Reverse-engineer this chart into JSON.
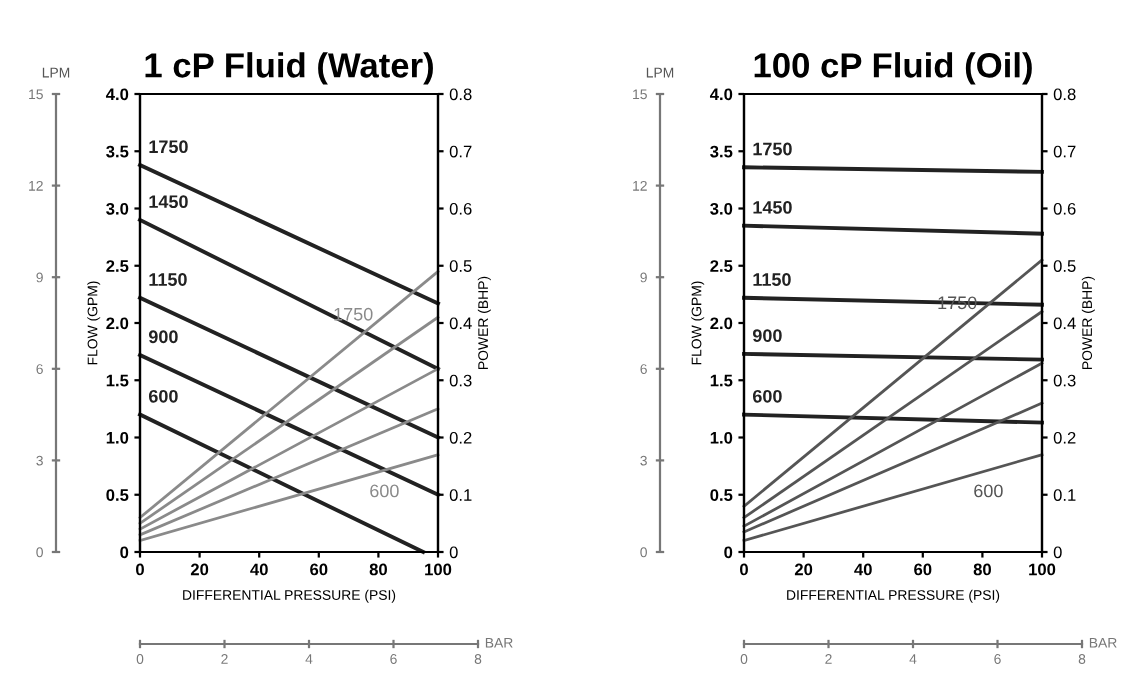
{
  "chart_data": [
    {
      "type": "line",
      "title": "1 cP Fluid (Water)",
      "xlabel": "DIFFERENTIAL PRESSURE (PSI)",
      "ylabel": "FLOW (GPM)",
      "y2label": "POWER (BHP)",
      "y3label": "LPM",
      "x2label": "BAR",
      "xlim": [
        0,
        100
      ],
      "xticks": [
        0,
        20,
        40,
        60,
        80,
        100
      ],
      "ylim": [
        0,
        4
      ],
      "yticks": [
        0,
        {
          "value": 0.5,
          "label": "0.5"
        },
        {
          "value": 1,
          "label": "1.0"
        },
        {
          "value": 1.5,
          "label": "1.5"
        },
        {
          "value": 2,
          "label": "2.0"
        },
        {
          "value": 2.5,
          "label": "2.5"
        },
        {
          "value": 3,
          "label": "3.0"
        },
        {
          "value": 3.5,
          "label": "3.5"
        },
        {
          "value": 4,
          "label": "4.0"
        }
      ],
      "y2lim": [
        0,
        0.8
      ],
      "y2ticks": [
        0,
        0.1,
        0.2,
        0.3,
        0.4,
        0.5,
        0.6,
        0.7,
        0.8
      ],
      "y3lim": [
        0,
        15
      ],
      "y3ticks": [
        0,
        3,
        6,
        9,
        12,
        15
      ],
      "x2lim": [
        0,
        8
      ],
      "x2ticks": [
        0,
        2,
        4,
        6,
        8
      ],
      "grid": false,
      "legend": false,
      "marker": "none",
      "line_style": "solid",
      "series": [
        {
          "name": "1750",
          "color": "#222222",
          "x": [
            0,
            100
          ],
          "values": [
            3.38,
            2.17
          ]
        },
        {
          "name": "1450",
          "color": "#222222",
          "x": [
            0,
            100
          ],
          "values": [
            2.9,
            1.6
          ]
        },
        {
          "name": "1150",
          "color": "#222222",
          "x": [
            0,
            100
          ],
          "values": [
            2.22,
            1.0
          ]
        },
        {
          "name": "900",
          "color": "#222222",
          "x": [
            0,
            100
          ],
          "values": [
            1.72,
            0.5
          ]
        },
        {
          "name": "600",
          "color": "#222222",
          "x": [
            0,
            95
          ],
          "values": [
            1.2,
            0
          ]
        },
        {
          "name": "1750",
          "color": "#8a8a8a",
          "axis": "y2",
          "x": [
            0,
            100
          ],
          "values": [
            0.06,
            0.49
          ]
        },
        {
          "color": "#8a8a8a",
          "axis": "y2",
          "x": [
            0,
            100
          ],
          "values": [
            0.05,
            0.41
          ]
        },
        {
          "color": "#8a8a8a",
          "axis": "y2",
          "x": [
            0,
            100
          ],
          "values": [
            0.04,
            0.32
          ]
        },
        {
          "color": "#8a8a8a",
          "axis": "y2",
          "x": [
            0,
            100
          ],
          "values": [
            0.03,
            0.25
          ]
        },
        {
          "name": "600",
          "color": "#8a8a8a",
          "axis": "y2",
          "x": [
            0,
            100
          ],
          "values": [
            0.02,
            0.17
          ]
        }
      ]
    },
    {
      "type": "line",
      "title": "100 cP Fluid (Oil)",
      "xlabel": "DIFFERENTIAL PRESSURE (PSI)",
      "ylabel": "FLOW (GPM)",
      "y2label": "POWER (BHP)",
      "y3label": "LPM",
      "x2label": "BAR",
      "xlim": [
        0,
        100
      ],
      "xticks": [
        0,
        20,
        40,
        60,
        80,
        100
      ],
      "ylim": [
        0,
        4
      ],
      "yticks": [
        0,
        {
          "value": 0.5,
          "label": "0.5"
        },
        {
          "value": 1,
          "label": "1.0"
        },
        {
          "value": 1.5,
          "label": "1.5"
        },
        {
          "value": 2,
          "label": "2.0"
        },
        {
          "value": 2.5,
          "label": "2.5"
        },
        {
          "value": 3,
          "label": "3.0"
        },
        {
          "value": 3.5,
          "label": "3.5"
        },
        {
          "value": 4,
          "label": "4.0"
        }
      ],
      "y2lim": [
        0,
        0.8
      ],
      "y2ticks": [
        0,
        0.1,
        0.2,
        0.3,
        0.4,
        0.5,
        0.6,
        0.7,
        0.8
      ],
      "y3lim": [
        0,
        15
      ],
      "y3ticks": [
        0,
        3,
        6,
        9,
        12,
        15
      ],
      "x2lim": [
        0,
        8
      ],
      "x2ticks": [
        0,
        2,
        4,
        6,
        8
      ],
      "grid": false,
      "legend": false,
      "marker": "none",
      "line_style": "solid",
      "series": [
        {
          "name": "1750",
          "color": "#222222",
          "x": [
            0,
            100
          ],
          "values": [
            3.36,
            3.32
          ]
        },
        {
          "name": "1450",
          "color": "#222222",
          "x": [
            0,
            100
          ],
          "values": [
            2.85,
            2.78
          ]
        },
        {
          "name": "1150",
          "color": "#222222",
          "x": [
            0,
            100
          ],
          "values": [
            2.22,
            2.16
          ]
        },
        {
          "name": "900",
          "color": "#222222",
          "x": [
            0,
            100
          ],
          "values": [
            1.73,
            1.68
          ]
        },
        {
          "name": "600",
          "color": "#222222",
          "x": [
            0,
            100
          ],
          "values": [
            1.2,
            1.13
          ]
        },
        {
          "name": "1750",
          "color": "#555555",
          "axis": "y2",
          "x": [
            0,
            100
          ],
          "values": [
            0.08,
            0.51
          ]
        },
        {
          "color": "#555555",
          "axis": "y2",
          "x": [
            0,
            100
          ],
          "values": [
            0.06,
            0.42
          ]
        },
        {
          "color": "#555555",
          "axis": "y2",
          "x": [
            0,
            100
          ],
          "values": [
            0.045,
            0.33
          ]
        },
        {
          "color": "#555555",
          "axis": "y2",
          "x": [
            0,
            100
          ],
          "values": [
            0.035,
            0.26
          ]
        },
        {
          "name": "600",
          "color": "#555555",
          "axis": "y2",
          "x": [
            0,
            100
          ],
          "values": [
            0.02,
            0.17
          ]
        }
      ]
    }
  ]
}
